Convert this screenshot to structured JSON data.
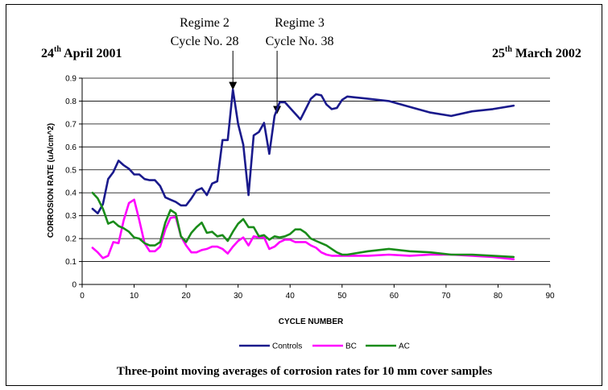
{
  "header": {
    "start_date": {
      "pre": "24",
      "sup": "th",
      "post": " April 2001"
    },
    "end_date": {
      "pre": "25",
      "sup": "th",
      "post": " March 2002"
    }
  },
  "annotations": [
    {
      "line1": "Regime 2",
      "line2": "Cycle No. 28",
      "x": 29,
      "y": 0.845
    },
    {
      "line1": "Regime 3",
      "line2": "Cycle No. 38",
      "x": 37.5,
      "y": 0.74
    }
  ],
  "caption": "Three-point moving averages of corrosion rates for 10 mm cover samples",
  "chart_data": {
    "type": "line",
    "xlabel": "CYCLE NUMBER",
    "ylabel": "CORROSION RATE (uA/cm^2)",
    "xlim": [
      0,
      90
    ],
    "ylim": [
      0,
      0.9
    ],
    "xticks": [
      "0",
      "10",
      "20",
      "30",
      "40",
      "50",
      "60",
      "70",
      "80",
      "90"
    ],
    "yticks": [
      "0",
      "0.1",
      "0.2",
      "0.3",
      "0.4",
      "0.5",
      "0.6",
      "0.7",
      "0.8",
      "0.9"
    ],
    "grid": true,
    "legend_position": "bottom",
    "series": [
      {
        "name": "Controls",
        "color": "#1a1a8c",
        "x": [
          2,
          3,
          4,
          5,
          6,
          7,
          8,
          9,
          10,
          11,
          12,
          13,
          14,
          15,
          16,
          17,
          18,
          19,
          20,
          21,
          22,
          23,
          24,
          25,
          26,
          27,
          28,
          29,
          30,
          31,
          32,
          33,
          34,
          35,
          36,
          37,
          38,
          39,
          40,
          41,
          42,
          43,
          44,
          45,
          46,
          47,
          48,
          49,
          50,
          51,
          55,
          59,
          63,
          67,
          71,
          75,
          79,
          83
        ],
        "y": [
          0.33,
          0.31,
          0.35,
          0.46,
          0.49,
          0.54,
          0.52,
          0.505,
          0.48,
          0.48,
          0.46,
          0.455,
          0.455,
          0.43,
          0.38,
          0.37,
          0.36,
          0.345,
          0.345,
          0.375,
          0.41,
          0.42,
          0.39,
          0.44,
          0.45,
          0.63,
          0.63,
          0.85,
          0.7,
          0.61,
          0.39,
          0.65,
          0.665,
          0.705,
          0.57,
          0.735,
          0.795,
          0.795,
          0.77,
          0.745,
          0.72,
          0.765,
          0.81,
          0.83,
          0.825,
          0.785,
          0.765,
          0.77,
          0.805,
          0.82,
          0.81,
          0.8,
          0.775,
          0.75,
          0.735,
          0.755,
          0.765,
          0.78
        ]
      },
      {
        "name": "BC",
        "color": "#ff00ff",
        "x": [
          2,
          3,
          4,
          5,
          6,
          7,
          8,
          9,
          10,
          11,
          12,
          13,
          14,
          15,
          16,
          17,
          18,
          19,
          20,
          21,
          22,
          23,
          24,
          25,
          26,
          27,
          28,
          29,
          30,
          31,
          32,
          33,
          34,
          35,
          36,
          37,
          38,
          39,
          40,
          41,
          42,
          43,
          44,
          45,
          46,
          47,
          48,
          49,
          50,
          55,
          59,
          63,
          67,
          71,
          75,
          79,
          83
        ],
        "y": [
          0.16,
          0.14,
          0.115,
          0.125,
          0.185,
          0.18,
          0.28,
          0.355,
          0.37,
          0.28,
          0.18,
          0.145,
          0.145,
          0.165,
          0.24,
          0.29,
          0.295,
          0.21,
          0.17,
          0.14,
          0.14,
          0.15,
          0.155,
          0.165,
          0.165,
          0.155,
          0.135,
          0.165,
          0.19,
          0.205,
          0.17,
          0.21,
          0.205,
          0.205,
          0.155,
          0.165,
          0.185,
          0.195,
          0.195,
          0.185,
          0.185,
          0.185,
          0.17,
          0.16,
          0.14,
          0.13,
          0.125,
          0.125,
          0.125,
          0.125,
          0.13,
          0.125,
          0.13,
          0.13,
          0.125,
          0.12,
          0.11
        ]
      },
      {
        "name": "AC",
        "color": "#1a8c1a",
        "x": [
          2,
          3,
          4,
          5,
          6,
          7,
          8,
          9,
          10,
          11,
          12,
          13,
          14,
          15,
          16,
          17,
          18,
          19,
          20,
          21,
          22,
          23,
          24,
          25,
          26,
          27,
          28,
          29,
          30,
          31,
          32,
          33,
          34,
          35,
          36,
          37,
          38,
          39,
          40,
          41,
          42,
          43,
          44,
          45,
          46,
          47,
          48,
          49,
          50,
          51,
          55,
          59,
          63,
          67,
          71,
          75,
          79,
          83
        ],
        "y": [
          0.4,
          0.375,
          0.33,
          0.265,
          0.275,
          0.255,
          0.245,
          0.23,
          0.205,
          0.2,
          0.18,
          0.17,
          0.17,
          0.185,
          0.27,
          0.325,
          0.31,
          0.21,
          0.185,
          0.225,
          0.25,
          0.27,
          0.225,
          0.23,
          0.21,
          0.215,
          0.19,
          0.23,
          0.265,
          0.285,
          0.25,
          0.25,
          0.21,
          0.215,
          0.195,
          0.21,
          0.205,
          0.21,
          0.22,
          0.24,
          0.24,
          0.225,
          0.2,
          0.19,
          0.18,
          0.17,
          0.155,
          0.14,
          0.13,
          0.13,
          0.145,
          0.155,
          0.145,
          0.14,
          0.13,
          0.13,
          0.125,
          0.12
        ]
      }
    ]
  }
}
